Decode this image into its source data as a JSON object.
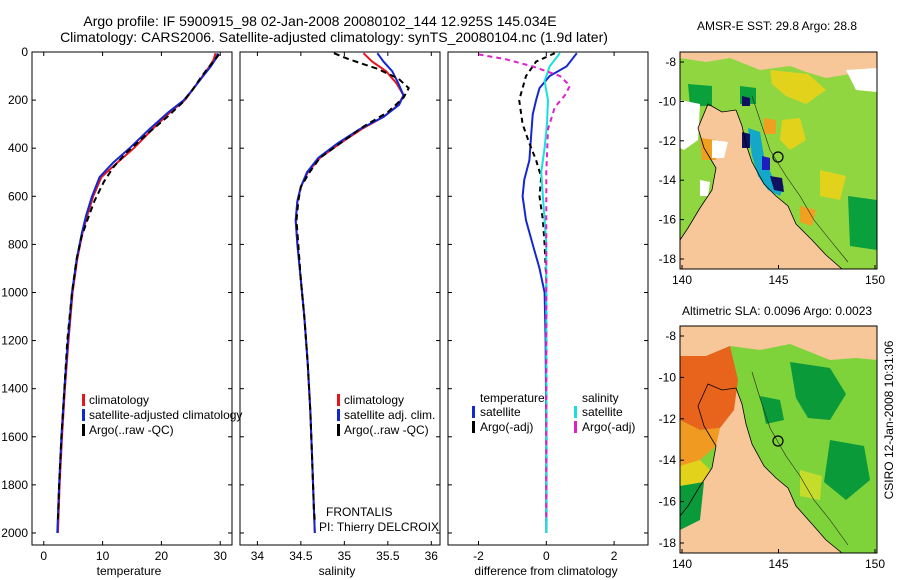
{
  "header": {
    "title_line1": "Argo profile: IF 5900915_98 02-Jan-2008 20080102_144 12.925S 145.034E",
    "title_line2": "Climatology: CARS2006. Satellite-adjusted climatology: synTS_20080104.nc (1.9d later)"
  },
  "colors": {
    "climatology": "#e8141e",
    "satellite": "#1428d2",
    "argo": "#000000",
    "salinity_satellite": "#18e0e0",
    "salinity_argo": "#e020c8",
    "land": "#f7c79a",
    "water_high": "#e0541c",
    "water_low": "#0a9a3a"
  },
  "chart_data": [
    {
      "id": "temperature",
      "type": "line",
      "xlabel": "temperature",
      "ylabel": "",
      "xlim": [
        -2,
        32
      ],
      "ylim": [
        2050,
        0
      ],
      "xticks": [
        0,
        10,
        20,
        30
      ],
      "yticks": [
        0,
        200,
        400,
        600,
        800,
        1000,
        1200,
        1400,
        1600,
        1800,
        2000
      ],
      "legend": [
        "climatology",
        "satellite-adjusted climatology",
        "Argo(..raw -QC)"
      ],
      "series": [
        {
          "name": "climatology",
          "color": "#e8141e",
          "dash": "",
          "points": [
            [
              29.2,
              5
            ],
            [
              28.9,
              30
            ],
            [
              28.2,
              60
            ],
            [
              27,
              100
            ],
            [
              25.5,
              150
            ],
            [
              24,
              200
            ],
            [
              21.5,
              250
            ],
            [
              18.5,
              320
            ],
            [
              15.3,
              400
            ],
            [
              12.5,
              460
            ],
            [
              9.8,
              520
            ],
            [
              8.4,
              600
            ],
            [
              7.4,
              680
            ],
            [
              6.6,
              750
            ],
            [
              5.7,
              860
            ],
            [
              4.9,
              1000
            ],
            [
              4.2,
              1200
            ],
            [
              3.6,
              1400
            ],
            [
              3.1,
              1600
            ],
            [
              2.7,
              1800
            ],
            [
              2.4,
              2000
            ]
          ]
        },
        {
          "name": "satellite-adjusted climatology",
          "color": "#1428d2",
          "dash": "",
          "points": [
            [
              29.6,
              5
            ],
            [
              29.2,
              30
            ],
            [
              28.4,
              60
            ],
            [
              27.1,
              100
            ],
            [
              25.5,
              150
            ],
            [
              23.8,
              200
            ],
            [
              21.2,
              250
            ],
            [
              18,
              320
            ],
            [
              14.6,
              400
            ],
            [
              11.8,
              460
            ],
            [
              9.5,
              520
            ],
            [
              8.2,
              600
            ],
            [
              7.2,
              680
            ],
            [
              6.5,
              750
            ],
            [
              5.6,
              860
            ],
            [
              4.8,
              1000
            ],
            [
              4.1,
              1200
            ],
            [
              3.5,
              1400
            ],
            [
              3,
              1600
            ],
            [
              2.6,
              1800
            ],
            [
              2.3,
              2000
            ]
          ]
        },
        {
          "name": "Argo(..raw -QC)",
          "color": "#000000",
          "dash": "6,4",
          "points": [
            [
              29.8,
              10
            ],
            [
              29,
              35
            ],
            [
              27.8,
              70
            ],
            [
              26.6,
              110
            ],
            [
              25.2,
              160
            ],
            [
              23.6,
              210
            ],
            [
              21,
              270
            ],
            [
              17.6,
              340
            ],
            [
              14,
              420
            ],
            [
              11.8,
              480
            ],
            [
              10.2,
              540
            ],
            [
              8.6,
              620
            ],
            [
              7.4,
              700
            ],
            [
              6.4,
              770
            ],
            [
              5.6,
              860
            ],
            [
              4.8,
              1000
            ],
            [
              4,
              1200
            ],
            [
              3.5,
              1400
            ],
            [
              3,
              1600
            ],
            [
              2.6,
              1800
            ],
            [
              2.4,
              1950
            ]
          ]
        }
      ]
    },
    {
      "id": "salinity",
      "type": "line",
      "xlabel": "salinity",
      "ylabel": "",
      "xlim": [
        33.8,
        36.1
      ],
      "ylim": [
        2050,
        0
      ],
      "xticks": [
        34,
        34.5,
        35,
        35.5,
        36
      ],
      "yticks": [
        0,
        200,
        400,
        600,
        800,
        1000,
        1200,
        1400,
        1600,
        1800,
        2000
      ],
      "legend": [
        "climatology",
        "satellite adj. clim.",
        "Argo(..raw -QC)"
      ],
      "annotation_line1": "FRONTALIS",
      "annotation_line2": "PI: Thierry DELCROIX",
      "series": [
        {
          "name": "climatology",
          "color": "#e8141e",
          "dash": "",
          "points": [
            [
              35.22,
              5
            ],
            [
              35.32,
              40
            ],
            [
              35.48,
              80
            ],
            [
              35.6,
              130
            ],
            [
              35.68,
              180
            ],
            [
              35.62,
              220
            ],
            [
              35.45,
              270
            ],
            [
              35.2,
              320
            ],
            [
              34.95,
              380
            ],
            [
              34.72,
              440
            ],
            [
              34.58,
              500
            ],
            [
              34.5,
              560
            ],
            [
              34.46,
              620
            ],
            [
              34.44,
              700
            ],
            [
              34.46,
              800
            ],
            [
              34.5,
              950
            ],
            [
              34.54,
              1100
            ],
            [
              34.58,
              1300
            ],
            [
              34.61,
              1500
            ],
            [
              34.63,
              1700
            ],
            [
              34.65,
              1900
            ],
            [
              34.66,
              2000
            ]
          ]
        },
        {
          "name": "satellite adj. clim.",
          "color": "#1428d2",
          "dash": "",
          "points": [
            [
              35.38,
              5
            ],
            [
              35.45,
              40
            ],
            [
              35.55,
              80
            ],
            [
              35.62,
              130
            ],
            [
              35.68,
              180
            ],
            [
              35.63,
              220
            ],
            [
              35.45,
              270
            ],
            [
              35.18,
              320
            ],
            [
              34.92,
              380
            ],
            [
              34.7,
              440
            ],
            [
              34.57,
              500
            ],
            [
              34.5,
              560
            ],
            [
              34.46,
              620
            ],
            [
              34.44,
              700
            ],
            [
              34.46,
              800
            ],
            [
              34.5,
              950
            ],
            [
              34.54,
              1100
            ],
            [
              34.58,
              1300
            ],
            [
              34.61,
              1500
            ],
            [
              34.63,
              1700
            ],
            [
              34.65,
              1900
            ],
            [
              34.66,
              2000
            ]
          ]
        },
        {
          "name": "Argo(..raw -QC)",
          "color": "#000000",
          "dash": "6,4",
          "points": [
            [
              34.88,
              5
            ],
            [
              35.05,
              30
            ],
            [
              35.38,
              70
            ],
            [
              35.62,
              110
            ],
            [
              35.74,
              150
            ],
            [
              35.68,
              190
            ],
            [
              35.5,
              250
            ],
            [
              35.22,
              310
            ],
            [
              34.95,
              380
            ],
            [
              34.72,
              440
            ],
            [
              34.6,
              500
            ],
            [
              34.5,
              560
            ],
            [
              34.47,
              620
            ],
            [
              34.45,
              700
            ],
            [
              34.47,
              800
            ],
            [
              34.5,
              950
            ],
            [
              34.54,
              1100
            ],
            [
              34.58,
              1300
            ],
            [
              34.61,
              1500
            ],
            [
              34.63,
              1700
            ],
            [
              34.65,
              1900
            ],
            [
              34.66,
              1950
            ]
          ]
        }
      ]
    },
    {
      "id": "difference",
      "type": "line",
      "xlabel": "difference from climatology",
      "ylabel": "",
      "xlim": [
        -2.9,
        3.0
      ],
      "ylim": [
        2050,
        0
      ],
      "xticks": [
        -2,
        0,
        2
      ],
      "yticks": [
        0,
        200,
        400,
        600,
        800,
        1000,
        1200,
        1400,
        1600,
        1800,
        2000
      ],
      "legend_header_temperature": "temperature",
      "legend_header_salinity": "salinity",
      "legend_satellite": "satellite",
      "legend_argo": "Argo(-adj)",
      "series": [
        {
          "name": "temperature satellite",
          "color": "#1428d2",
          "dash": "",
          "points": [
            [
              0.9,
              5
            ],
            [
              0.6,
              60
            ],
            [
              0.1,
              100
            ],
            [
              -0.2,
              150
            ],
            [
              -0.3,
              200
            ],
            [
              -0.4,
              260
            ],
            [
              -0.45,
              350
            ],
            [
              -0.5,
              450
            ],
            [
              -0.65,
              530
            ],
            [
              -0.7,
              600
            ],
            [
              -0.6,
              700
            ],
            [
              -0.4,
              800
            ],
            [
              -0.2,
              900
            ],
            [
              -0.05,
              1000
            ],
            [
              -0.02,
              1200
            ],
            [
              0,
              1600
            ],
            [
              0,
              2000
            ]
          ]
        },
        {
          "name": "temperature Argo(-adj)",
          "color": "#000000",
          "dash": "5,4",
          "points": [
            [
              0.25,
              5
            ],
            [
              -0.3,
              40
            ],
            [
              -0.6,
              100
            ],
            [
              -0.8,
              200
            ],
            [
              -0.7,
              300
            ],
            [
              -0.5,
              380
            ],
            [
              -0.3,
              450
            ],
            [
              -0.15,
              520
            ],
            [
              -0.2,
              600
            ],
            [
              -0.1,
              700
            ],
            [
              -0.05,
              800
            ],
            [
              0,
              950
            ],
            [
              0,
              1600
            ],
            [
              0,
              1950
            ]
          ]
        },
        {
          "name": "salinity satellite",
          "color": "#18e0e0",
          "dash": "",
          "points": [
            [
              0.4,
              5
            ],
            [
              0.1,
              60
            ],
            [
              -0.05,
              120
            ],
            [
              0.05,
              200
            ],
            [
              0.02,
              300
            ],
            [
              -0.05,
              400
            ],
            [
              -0.15,
              500
            ],
            [
              -0.1,
              600
            ],
            [
              -0.05,
              700
            ],
            [
              0,
              800
            ],
            [
              0,
              1600
            ],
            [
              0,
              2000
            ]
          ]
        },
        {
          "name": "salinity Argo(-adj)",
          "color": "#e020c8",
          "dash": "5,4",
          "points": [
            [
              -2,
              10
            ],
            [
              -1.2,
              30
            ],
            [
              -0.4,
              60
            ],
            [
              0.4,
              100
            ],
            [
              0.7,
              140
            ],
            [
              0.55,
              180
            ],
            [
              0.25,
              230
            ],
            [
              0.05,
              320
            ],
            [
              0,
              500
            ],
            [
              0,
              1000
            ],
            [
              0,
              1600
            ],
            [
              0,
              1950
            ]
          ]
        }
      ]
    }
  ],
  "maps": [
    {
      "id": "sst-map",
      "title": "AMSR-E SST: 29.8 Argo: 28.8",
      "xticks": [
        "140",
        "145",
        "150"
      ],
      "yticks": [
        "-8",
        "-10",
        "-12",
        "-14",
        "-16",
        "-18"
      ],
      "profile_lon": 145.0,
      "profile_lat": -12.9
    },
    {
      "id": "sla-map",
      "title": "Altimetric SLA: 0.0096 Argo: 0.0023",
      "xticks": [
        "140",
        "145",
        "150"
      ],
      "yticks": [
        "-8",
        "-10",
        "-12",
        "-14",
        "-16",
        "-18"
      ],
      "profile_lon": 145.0,
      "profile_lat": -12.9
    }
  ],
  "footer": {
    "credit": "CSIRO 12-Jan-2008 10:31:06"
  }
}
